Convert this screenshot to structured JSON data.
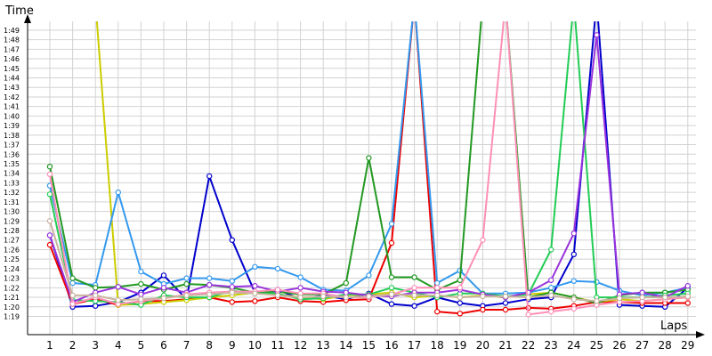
{
  "chart_data": {
    "type": "line",
    "title": "",
    "ylabel": "Time",
    "xlabel": "Laps",
    "x": [
      1,
      2,
      3,
      4,
      5,
      6,
      7,
      8,
      9,
      10,
      11,
      12,
      13,
      14,
      15,
      16,
      17,
      18,
      19,
      20,
      21,
      22,
      23,
      24,
      25,
      26,
      27,
      28,
      29
    ],
    "y_ticks": [
      "1:19",
      "1:20",
      "1:21",
      "1:22",
      "1:23",
      "1:24",
      "1:25",
      "1:26",
      "1:27",
      "1:28",
      "1:29",
      "1:30",
      "1:31",
      "1:32",
      "1:33",
      "1:34",
      "1:35",
      "1:36",
      "1:37",
      "1:38",
      "1:39",
      "1:40",
      "1:41",
      "1:42",
      "1:43",
      "1:44",
      "1:45",
      "1:46",
      "1:47",
      "1:48",
      "1:49"
    ],
    "ylim_seconds": [
      78,
      112
    ],
    "grid": true,
    "series": [
      {
        "color": "#0000cc",
        "values": [
          87.5,
          80.0,
          80.1,
          80.5,
          81.5,
          83.3,
          80.8,
          93.7,
          87.0,
          81.5,
          81.8,
          80.8,
          81.2,
          80.8,
          81.4,
          80.3,
          80.1,
          81.0,
          80.4,
          80.1,
          80.4,
          80.8,
          81.0,
          85.5,
          112.0,
          80.2,
          80.1,
          80.0,
          82.0
        ]
      },
      {
        "color": "#ee0000",
        "values": [
          86.5,
          80.3,
          80.8,
          80.2,
          80.6,
          80.6,
          80.8,
          81.0,
          80.5,
          80.6,
          81.0,
          80.6,
          80.5,
          80.7,
          80.8,
          86.7,
          112.0,
          79.5,
          79.3,
          79.7,
          79.7,
          79.9,
          79.8,
          80.1,
          80.5,
          80.5,
          80.4,
          80.4,
          80.4
        ]
      },
      {
        "color": "#cccc00",
        "values": [
          112.0,
          112.0,
          112.0,
          80.2,
          80.3,
          80.5,
          80.7,
          81.0,
          81.2,
          81.5,
          81.3,
          81.0,
          80.8,
          81.2,
          81.3,
          81.5,
          81.0,
          81.2,
          81.0,
          81.2,
          81.0,
          81.3,
          81.5,
          81.0,
          80.5,
          80.8,
          80.6,
          80.8,
          81.0
        ]
      },
      {
        "color": "#3399ee",
        "values": [
          92.7,
          82.5,
          82.3,
          92.0,
          83.7,
          82.4,
          83.0,
          83.0,
          82.7,
          84.2,
          84.0,
          83.1,
          81.8,
          81.7,
          83.3,
          88.7,
          112.0,
          82.5,
          83.8,
          81.4,
          81.4,
          81.5,
          82.0,
          82.7,
          82.6,
          81.7,
          81.2,
          81.5,
          82.0
        ]
      },
      {
        "color": "#229922",
        "values": [
          94.7,
          83.0,
          82.0,
          82.1,
          82.4,
          81.8,
          82.4,
          82.3,
          82.0,
          81.5,
          81.6,
          81.3,
          81.3,
          82.5,
          95.6,
          83.1,
          83.1,
          81.8,
          82.8,
          112.0,
          112.0,
          81.0,
          81.5,
          81.0,
          80.4,
          81.2,
          81.5,
          81.5,
          81.8
        ]
      },
      {
        "color": "#22cc55",
        "values": [
          91.8,
          80.7,
          80.6,
          80.5,
          80.2,
          81.2,
          81.0,
          81.0,
          81.7,
          81.4,
          81.4,
          80.8,
          80.9,
          81.3,
          81.3,
          82.0,
          81.5,
          81.0,
          81.4,
          81.4,
          81.1,
          81.3,
          86.0,
          112.0,
          81.0,
          81.0,
          81.0,
          81.2,
          81.4
        ]
      },
      {
        "color": "#9933dd",
        "values": [
          87.5,
          80.5,
          81.5,
          82.1,
          81.3,
          82.0,
          81.5,
          82.3,
          82.1,
          82.2,
          81.6,
          82.0,
          81.6,
          81.5,
          81.2,
          81.1,
          81.5,
          81.5,
          81.8,
          81.3,
          81.0,
          81.5,
          82.8,
          87.7,
          108.5,
          81.3,
          81.5,
          81.0,
          82.2
        ]
      },
      {
        "color": "#ff8fb8",
        "values": [
          93.9,
          80.3,
          81.0,
          80.3,
          80.6,
          80.9,
          81.3,
          81.5,
          81.6,
          81.6,
          81.8,
          81.4,
          81.4,
          81.0,
          81.0,
          81.3,
          82.0,
          82.0,
          82.0,
          87.0,
          112.0,
          79.2,
          79.5,
          79.8,
          80.2,
          80.5,
          80.6,
          80.8,
          81.0
        ]
      },
      {
        "color": "#c9b3a0",
        "values": [
          89.0,
          81.2,
          81.2,
          80.7,
          80.8,
          80.9,
          81.2,
          81.3,
          81.5,
          81.4,
          81.2,
          81.0,
          81.1,
          81.0,
          81.1,
          81.3,
          81.2,
          81.2,
          81.0,
          81.1,
          81.1,
          81.0,
          81.2,
          80.8,
          80.6,
          80.9,
          81.0,
          81.0,
          81.1
        ]
      }
    ]
  }
}
